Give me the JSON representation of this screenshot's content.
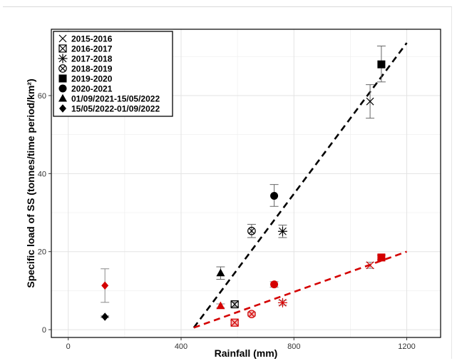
{
  "chart_data": {
    "type": "scatter",
    "title": "",
    "xlabel": "Rainfall (mm)",
    "ylabel": "Specific load of SS (tonnes/time period/km²)",
    "xlim": [
      -60,
      1320
    ],
    "ylim": [
      -2,
      77
    ],
    "x_ticks": [
      0,
      400,
      800,
      1200
    ],
    "y_ticks": [
      0,
      20,
      40,
      60
    ],
    "grid": true,
    "legend_position": "top-left",
    "colors": {
      "black_series": "#000000",
      "red_series": "#d40000",
      "red_fill_light": "#f2b8b8"
    },
    "series": [
      {
        "name": "2015-2016",
        "marker": "x",
        "black": {
          "x": 1070,
          "y": 58.5,
          "yerr": [
            54.2,
            62.8
          ]
        },
        "red": {
          "x": 1070,
          "y": 16.5,
          "yerr": [
            15.7,
            17.3
          ]
        }
      },
      {
        "name": "2016-2017",
        "marker": "square-x",
        "black": {
          "x": 590,
          "y": 6.5,
          "yerr": [
            5.9,
            7.1
          ]
        },
        "red": {
          "x": 590,
          "y": 1.8,
          "yerr": [
            1.3,
            2.3
          ]
        }
      },
      {
        "name": "2017-2018",
        "marker": "asterisk",
        "black": {
          "x": 760,
          "y": 25.2,
          "yerr": [
            23.6,
            26.8
          ]
        },
        "red": {
          "x": 760,
          "y": 6.9,
          "yerr": [
            6.3,
            7.5
          ]
        }
      },
      {
        "name": "2018-2019",
        "marker": "circle-x",
        "black": {
          "x": 650,
          "y": 25.3,
          "yerr": [
            23.6,
            27.0
          ]
        },
        "red": {
          "x": 650,
          "y": 4.0,
          "yerr": [
            3.5,
            4.5
          ]
        }
      },
      {
        "name": "2019-2020",
        "marker": "square",
        "black": {
          "x": 1110,
          "y": 68.0,
          "yerr": [
            63.5,
            72.7
          ]
        },
        "red": {
          "x": 1110,
          "y": 18.5,
          "yerr": [
            17.9,
            19.1
          ]
        }
      },
      {
        "name": "2020-2021",
        "marker": "circle",
        "black": {
          "x": 730,
          "y": 34.3,
          "yerr": [
            31.6,
            37.2
          ]
        },
        "red": {
          "x": 730,
          "y": 11.6,
          "yerr": [
            10.9,
            12.3
          ]
        }
      },
      {
        "name": "01/09/2021-15/05/2022",
        "marker": "triangle",
        "black": {
          "x": 540,
          "y": 14.5,
          "yerr": [
            12.9,
            16.1
          ]
        },
        "red": {
          "x": 540,
          "y": 6.1,
          "yerr": [
            5.6,
            6.6
          ]
        }
      },
      {
        "name": "15/05/2022-01/09/2022",
        "marker": "diamond",
        "black": {
          "x": 130,
          "y": 3.3,
          "yerr": [
            3.1,
            3.5
          ]
        },
        "red": {
          "x": 130,
          "y": 11.3,
          "yerr": [
            7.0,
            15.6
          ]
        }
      }
    ],
    "trend_lines": [
      {
        "color": "black",
        "style": "dashed",
        "from": [
          445,
          0.5
        ],
        "to": [
          1200,
          73.5
        ]
      },
      {
        "color": "red",
        "style": "dashed",
        "from": [
          445,
          0.5
        ],
        "to": [
          1200,
          20.0
        ]
      }
    ]
  }
}
